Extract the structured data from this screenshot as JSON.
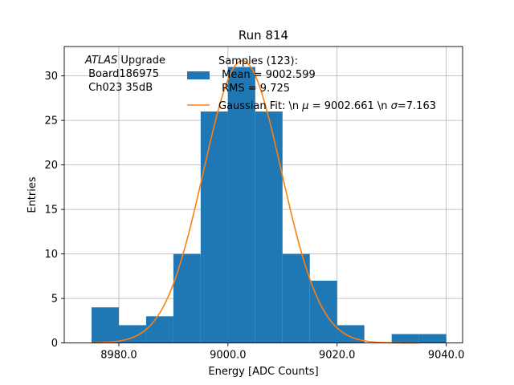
{
  "chart_data": {
    "type": "bar",
    "title": "Run 814",
    "xlabel": "Energy [ADC Counts]",
    "ylabel": "Entries",
    "xlim": [
      8970,
      9043
    ],
    "ylim": [
      0,
      33.3
    ],
    "grid": true,
    "bin_edges": [
      8975,
      8980,
      8985,
      8990,
      8995,
      9000,
      9005,
      9010,
      9015,
      9020,
      9025,
      9030,
      9035,
      9040
    ],
    "counts": [
      4,
      2,
      3,
      10,
      26,
      31,
      26,
      10,
      7,
      2,
      0,
      1,
      1
    ],
    "x_ticks": [
      8980,
      9000,
      9020,
      9040
    ],
    "x_tick_labels": [
      "8980.0",
      "9000.0",
      "9020.0",
      "9040.0"
    ],
    "y_ticks": [
      0,
      5,
      10,
      15,
      20,
      25,
      30
    ],
    "y_tick_labels": [
      "0",
      "5",
      "10",
      "15",
      "20",
      "25",
      "30"
    ],
    "histogram_color": "#1f77b4",
    "fit": {
      "type": "gaussian",
      "mu": 9002.661,
      "sigma": 7.163,
      "amplitude": 31.7,
      "x_range": [
        8975,
        9035
      ],
      "color": "#ff7f0e"
    },
    "annotation": {
      "experiment": "ATLAS",
      "experiment_suffix": " Upgrade",
      "board": " Board186975",
      "channel": " Ch023 35dB"
    },
    "legend": {
      "position": "top-right",
      "histogram_line1": "Samples (123):",
      "histogram_line2": " Mean = 9002.599",
      "histogram_line3": " RMS = 9.725",
      "fit_prefix": "Gaussian Fit: \\n ",
      "fit_mu_symbol": "μ",
      "fit_mu_value": " = 9002.661 \\n ",
      "fit_sigma_symbol": "σ",
      "fit_sigma_value": "=7.163"
    }
  }
}
